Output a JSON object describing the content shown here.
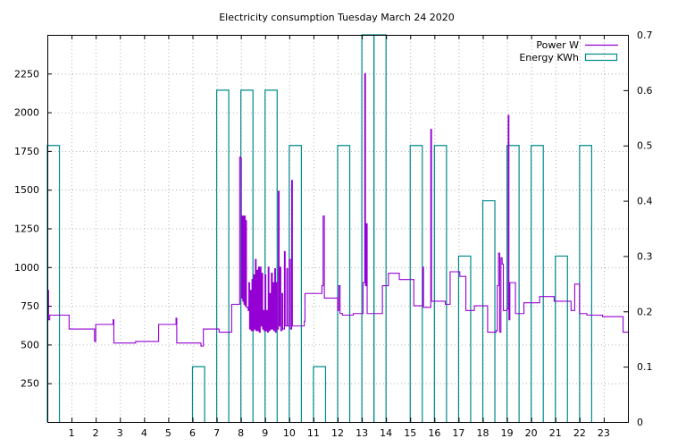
{
  "chart_data": {
    "type": "line",
    "title": "Electricity consumption Tuesday March 24 2020",
    "xlabel": "",
    "ylabel": "",
    "y2label": "",
    "x_ticks": [
      "1",
      "2",
      "3",
      "4",
      "5",
      "6",
      "7",
      "8",
      "9",
      "10",
      "11",
      "12",
      "13",
      "14",
      "15",
      "16",
      "17",
      "18",
      "19",
      "20",
      "21",
      "22",
      "23"
    ],
    "xlim": [
      0,
      24
    ],
    "ylim": [
      0,
      2500
    ],
    "y_ticks": [
      "250",
      "500",
      "750",
      "1000",
      "1250",
      "1500",
      "1750",
      "2000",
      "2250"
    ],
    "y2lim": [
      0,
      0.7
    ],
    "y2_ticks": [
      "0",
      "0.1",
      "0.2",
      "0.3",
      "0.4",
      "0.5",
      "0.6",
      "0.7"
    ],
    "grid": true,
    "legend_position": "top-right",
    "series": [
      {
        "name": "Power W",
        "axis": "left",
        "style": "step-line",
        "color": "#9400d3",
        "points": [
          [
            0.0,
            850
          ],
          [
            0.05,
            660
          ],
          [
            0.1,
            690
          ],
          [
            0.9,
            690
          ],
          [
            0.9,
            600
          ],
          [
            1.9,
            600
          ],
          [
            1.95,
            520
          ],
          [
            2.0,
            630
          ],
          [
            2.7,
            630
          ],
          [
            2.72,
            660
          ],
          [
            2.75,
            510
          ],
          [
            3.6,
            510
          ],
          [
            3.65,
            520
          ],
          [
            4.6,
            520
          ],
          [
            4.6,
            630
          ],
          [
            5.3,
            630
          ],
          [
            5.32,
            670
          ],
          [
            5.35,
            510
          ],
          [
            6.3,
            510
          ],
          [
            6.35,
            490
          ],
          [
            6.45,
            600
          ],
          [
            7.1,
            600
          ],
          [
            7.1,
            580
          ],
          [
            7.6,
            580
          ],
          [
            7.62,
            760
          ],
          [
            7.9,
            760
          ],
          [
            7.95,
            1710
          ],
          [
            8.0,
            1700
          ],
          [
            8.02,
            800
          ],
          [
            8.05,
            1330
          ],
          [
            8.08,
            780
          ],
          [
            8.1,
            1330
          ],
          [
            8.13,
            760
          ],
          [
            8.15,
            1330
          ],
          [
            8.18,
            750
          ],
          [
            8.2,
            1300
          ],
          [
            8.23,
            740
          ],
          [
            8.3,
            720
          ],
          [
            8.33,
            900
          ],
          [
            8.36,
            600
          ],
          [
            8.4,
            850
          ],
          [
            8.43,
            590
          ],
          [
            8.46,
            920
          ],
          [
            8.5,
            590
          ],
          [
            8.53,
            950
          ],
          [
            8.56,
            600
          ],
          [
            8.6,
            1050
          ],
          [
            8.63,
            590
          ],
          [
            8.66,
            980
          ],
          [
            8.7,
            590
          ],
          [
            8.73,
            1000
          ],
          [
            8.76,
            580
          ],
          [
            8.8,
            1000
          ],
          [
            8.83,
            620
          ],
          [
            8.86,
            960
          ],
          [
            8.9,
            600
          ],
          [
            8.93,
            720
          ],
          [
            8.96,
            590
          ],
          [
            9.0,
            950
          ],
          [
            9.03,
            590
          ],
          [
            9.06,
            720
          ],
          [
            9.1,
            580
          ],
          [
            9.13,
            1000
          ],
          [
            9.16,
            590
          ],
          [
            9.2,
            830
          ],
          [
            9.23,
            600
          ],
          [
            9.26,
            960
          ],
          [
            9.3,
            600
          ],
          [
            9.33,
            900
          ],
          [
            9.36,
            590
          ],
          [
            9.4,
            990
          ],
          [
            9.43,
            580
          ],
          [
            9.46,
            900
          ],
          [
            9.5,
            600
          ],
          [
            9.55,
            1490
          ],
          [
            9.58,
            620
          ],
          [
            9.62,
            1000
          ],
          [
            9.65,
            590
          ],
          [
            9.7,
            830
          ],
          [
            9.73,
            600
          ],
          [
            9.8,
            1100
          ],
          [
            9.83,
            620
          ],
          [
            9.9,
            990
          ],
          [
            9.93,
            620
          ],
          [
            10.0,
            1050
          ],
          [
            10.05,
            600
          ],
          [
            10.1,
            1560
          ],
          [
            10.13,
            620
          ],
          [
            10.6,
            620
          ],
          [
            10.62,
            650
          ],
          [
            10.65,
            830
          ],
          [
            11.3,
            830
          ],
          [
            11.35,
            880
          ],
          [
            11.4,
            1330
          ],
          [
            11.45,
            800
          ],
          [
            11.95,
            800
          ],
          [
            12.0,
            720
          ],
          [
            12.05,
            880
          ],
          [
            12.1,
            700
          ],
          [
            12.2,
            690
          ],
          [
            12.6,
            690
          ],
          [
            12.65,
            700
          ],
          [
            13.0,
            700
          ],
          [
            13.05,
            900
          ],
          [
            13.12,
            2250
          ],
          [
            13.15,
            880
          ],
          [
            13.18,
            1280
          ],
          [
            13.22,
            700
          ],
          [
            13.8,
            700
          ],
          [
            13.85,
            880
          ],
          [
            14.05,
            880
          ],
          [
            14.1,
            960
          ],
          [
            14.5,
            960
          ],
          [
            14.55,
            920
          ],
          [
            15.1,
            920
          ],
          [
            15.15,
            750
          ],
          [
            15.5,
            750
          ],
          [
            15.52,
            1000
          ],
          [
            15.55,
            740
          ],
          [
            15.8,
            740
          ],
          [
            15.85,
            1890
          ],
          [
            15.88,
            780
          ],
          [
            16.4,
            780
          ],
          [
            16.45,
            760
          ],
          [
            16.6,
            760
          ],
          [
            16.65,
            970
          ],
          [
            17.0,
            970
          ],
          [
            17.05,
            940
          ],
          [
            17.25,
            940
          ],
          [
            17.3,
            720
          ],
          [
            17.6,
            720
          ],
          [
            17.65,
            750
          ],
          [
            18.15,
            750
          ],
          [
            18.2,
            580
          ],
          [
            18.5,
            580
          ],
          [
            18.55,
            590
          ],
          [
            18.6,
            880
          ],
          [
            18.65,
            1090
          ],
          [
            18.7,
            580
          ],
          [
            18.75,
            1060
          ],
          [
            18.8,
            1020
          ],
          [
            18.85,
            720
          ],
          [
            19.0,
            730
          ],
          [
            19.05,
            1980
          ],
          [
            19.08,
            660
          ],
          [
            19.12,
            900
          ],
          [
            19.3,
            900
          ],
          [
            19.35,
            700
          ],
          [
            19.65,
            700
          ],
          [
            19.7,
            770
          ],
          [
            20.3,
            770
          ],
          [
            20.35,
            810
          ],
          [
            20.9,
            810
          ],
          [
            20.95,
            780
          ],
          [
            21.6,
            780
          ],
          [
            21.65,
            720
          ],
          [
            21.75,
            720
          ],
          [
            21.8,
            890
          ],
          [
            21.95,
            890
          ],
          [
            22.0,
            700
          ],
          [
            22.25,
            700
          ],
          [
            22.3,
            690
          ],
          [
            22.9,
            690
          ],
          [
            22.95,
            680
          ],
          [
            23.75,
            680
          ],
          [
            23.8,
            580
          ],
          [
            24.0,
            580
          ]
        ]
      },
      {
        "name": "Energy KWh",
        "axis": "right",
        "style": "boxes",
        "color": "#008b8b",
        "box_width": 0.5,
        "values": [
          [
            0,
            0.5
          ],
          [
            1,
            0
          ],
          [
            2,
            0
          ],
          [
            3,
            0
          ],
          [
            4,
            0
          ],
          [
            5,
            0
          ],
          [
            6,
            0.1
          ],
          [
            7,
            0.6
          ],
          [
            8,
            0.6
          ],
          [
            9,
            0.6
          ],
          [
            10,
            0.5
          ],
          [
            11,
            0.1
          ],
          [
            12,
            0.5
          ],
          [
            13,
            0.7
          ],
          [
            13.5,
            0.7
          ],
          [
            15,
            0.5
          ],
          [
            16,
            0.5
          ],
          [
            17,
            0.3
          ],
          [
            18,
            0.4
          ],
          [
            19,
            0.5
          ],
          [
            20,
            0.5
          ],
          [
            21,
            0.3
          ],
          [
            22,
            0.5
          ],
          [
            23,
            0
          ]
        ]
      }
    ]
  }
}
